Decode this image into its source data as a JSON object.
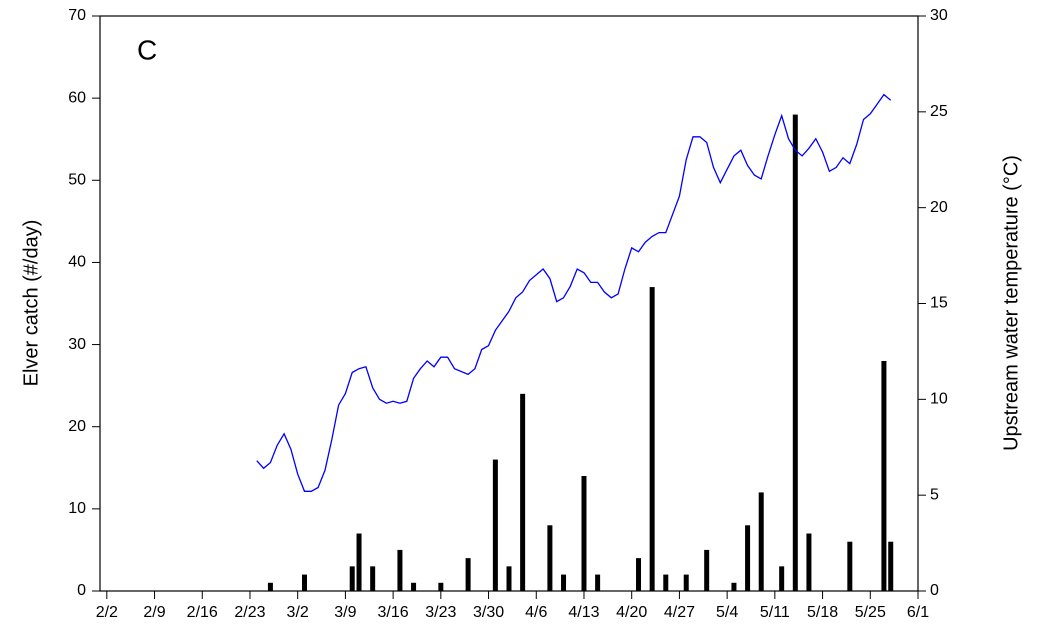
{
  "chart_data": {
    "type": "bar",
    "annotation": "C",
    "ylabel": "Elver catch (#/day)",
    "y2label": "Upstream water temperature (°C)",
    "xlim": [
      "2/1",
      "6/1"
    ],
    "xticks": [
      "2/2",
      "2/9",
      "2/16",
      "2/23",
      "3/2",
      "3/9",
      "3/16",
      "3/23",
      "3/30",
      "4/6",
      "4/13",
      "4/20",
      "4/27",
      "5/4",
      "5/11",
      "5/18",
      "5/25",
      "6/1"
    ],
    "ylim": [
      0,
      70
    ],
    "yticks": [
      0,
      10,
      20,
      30,
      40,
      50,
      60,
      70
    ],
    "y2lim": [
      0,
      30
    ],
    "y2ticks": [
      0,
      5,
      10,
      15,
      20,
      25,
      30
    ],
    "series": [
      {
        "type": "bar",
        "color": "#000000",
        "x": [
          "2/26",
          "3/3",
          "3/10",
          "3/11",
          "3/13",
          "3/17",
          "3/19",
          "3/23",
          "3/27",
          "3/31",
          "4/2",
          "4/4",
          "4/8",
          "4/10",
          "4/13",
          "4/15",
          "4/21",
          "4/23",
          "4/25",
          "4/28",
          "5/1",
          "5/5",
          "5/7",
          "5/9",
          "5/12",
          "5/14",
          "5/16",
          "5/22",
          "5/27",
          "5/28"
        ],
        "values": [
          1,
          2,
          3,
          7,
          3,
          5,
          1,
          1,
          4,
          16,
          3,
          24,
          8,
          2,
          14,
          2,
          4,
          37,
          2,
          2,
          5,
          1,
          8,
          12,
          3,
          58,
          7,
          6,
          28,
          6
        ]
      },
      {
        "type": "line",
        "color": "#0000ff",
        "axis": "y2",
        "x": [
          "2/24",
          "2/25",
          "2/26",
          "2/27",
          "2/28",
          "3/1",
          "3/2",
          "3/3",
          "3/4",
          "3/5",
          "3/6",
          "3/7",
          "3/8",
          "3/9",
          "3/10",
          "3/11",
          "3/12",
          "3/13",
          "3/14",
          "3/15",
          "3/16",
          "3/17",
          "3/18",
          "3/19",
          "3/20",
          "3/21",
          "3/22",
          "3/23",
          "3/24",
          "3/25",
          "3/27",
          "3/28",
          "3/29",
          "3/30",
          "3/31",
          "4/1",
          "4/2",
          "4/3",
          "4/4",
          "4/5",
          "4/6",
          "4/7",
          "4/8",
          "4/9",
          "4/10",
          "4/11",
          "4/12",
          "4/13",
          "4/14",
          "4/15",
          "4/16",
          "4/17",
          "4/18",
          "4/19",
          "4/20",
          "4/21",
          "4/22",
          "4/23",
          "4/24",
          "4/25",
          "4/27",
          "4/28",
          "4/29",
          "4/30",
          "5/1",
          "5/2",
          "5/3",
          "5/4",
          "5/5",
          "5/6",
          "5/7",
          "5/8",
          "5/9",
          "5/10",
          "5/11",
          "5/12",
          "5/13",
          "5/14",
          "5/15",
          "5/16",
          "5/17",
          "5/18",
          "5/19",
          "5/20",
          "5/21",
          "5/22",
          "5/23",
          "5/24",
          "5/25",
          "5/26",
          "5/27",
          "5/28"
        ],
        "values": [
          6.8,
          6.4,
          6.7,
          7.6,
          8.2,
          7.4,
          6.1,
          5.2,
          5.2,
          5.4,
          6.3,
          7.9,
          9.7,
          10.3,
          11.4,
          11.6,
          11.7,
          10.6,
          10.0,
          9.8,
          9.9,
          9.8,
          9.9,
          11.1,
          11.6,
          12.0,
          11.7,
          12.2,
          12.2,
          11.6,
          11.3,
          11.6,
          12.6,
          12.8,
          13.6,
          14.1,
          14.6,
          15.3,
          15.6,
          16.2,
          16.5,
          16.8,
          16.3,
          15.1,
          15.3,
          15.9,
          16.8,
          16.6,
          16.1,
          16.1,
          15.6,
          15.3,
          15.5,
          16.8,
          17.9,
          17.7,
          18.2,
          18.5,
          18.7,
          18.7,
          20.6,
          22.5,
          23.7,
          23.7,
          23.4,
          22.1,
          21.3,
          22.0,
          22.7,
          23.0,
          22.2,
          21.7,
          21.5,
          22.7,
          23.8,
          24.8,
          23.6,
          23.0,
          22.7,
          23.1,
          23.6,
          22.9,
          21.9,
          22.1,
          22.6,
          22.3,
          23.3,
          24.6,
          24.9,
          25.4,
          25.9,
          25.6
        ]
      }
    ]
  }
}
